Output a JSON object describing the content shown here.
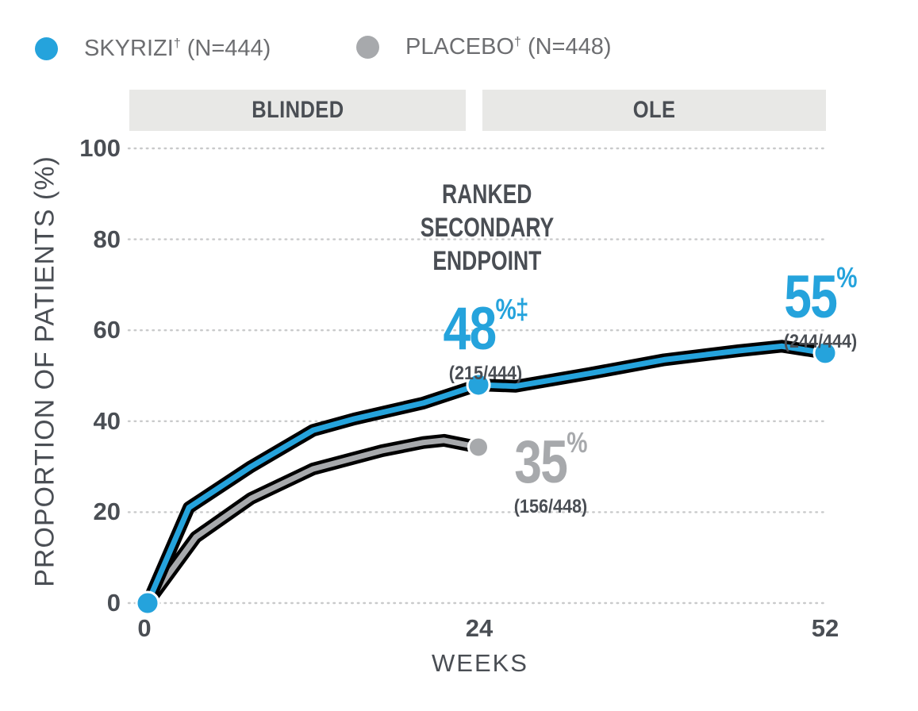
{
  "legend": {
    "items": [
      {
        "label": "SKYRIZI",
        "dagger": "†",
        "n": "(N=444)",
        "color": "#25a3dc"
      },
      {
        "label": "PLACEBO",
        "dagger": "†",
        "n": "(N=448)",
        "color": "#a7a9ac"
      }
    ]
  },
  "chart_data": {
    "type": "line",
    "xlabel": "WEEKS",
    "ylabel": "PROPORTION OF PATIENTS (%)",
    "xlim": [
      0,
      52
    ],
    "ylim": [
      0,
      100
    ],
    "x_ticks": [
      0,
      24,
      52
    ],
    "y_ticks": [
      0,
      20,
      40,
      60,
      80,
      100
    ],
    "grid": "dotted-horizontal",
    "legend_position": "top-left",
    "phases": [
      {
        "label": "BLINDED",
        "x_start": 0,
        "x_end": 24
      },
      {
        "label": "OLE",
        "x_start": 24,
        "x_end": 52
      }
    ],
    "series": [
      {
        "name": "PLACEBO",
        "color": "#a7a9ac",
        "outline": "#000000",
        "points": [
          [
            0,
            0
          ],
          [
            3.5,
            14.5
          ],
          [
            7.5,
            23
          ],
          [
            12,
            29.5
          ],
          [
            17,
            33.5
          ],
          [
            20,
            35.3
          ],
          [
            21.5,
            35.8
          ],
          [
            24,
            34.3
          ]
        ],
        "markers": [
          [
            24,
            34.3
          ]
        ],
        "marker_radius": 12.5,
        "endpoint_value_pct": 35,
        "endpoint_fraction": "(156/448)"
      },
      {
        "name": "SKYRIZI",
        "color": "#25a3dc",
        "outline": "#000000",
        "points": [
          [
            0,
            0
          ],
          [
            3,
            21
          ],
          [
            7.5,
            30
          ],
          [
            12,
            38
          ],
          [
            15,
            40.5
          ],
          [
            20,
            44
          ],
          [
            24,
            48
          ],
          [
            27,
            47.7
          ],
          [
            33,
            50.5
          ],
          [
            39,
            53.5
          ],
          [
            45,
            55.5
          ],
          [
            48.5,
            56.5
          ],
          [
            52,
            55
          ]
        ],
        "markers": [
          [
            0,
            0
          ],
          [
            24,
            48
          ],
          [
            52,
            55
          ]
        ],
        "marker_radius": 14,
        "endpoint_value_pct": 55,
        "endpoint_fraction": "(244/444)"
      }
    ],
    "annotations": [
      {
        "id": "ranked-secondary-endpoint",
        "lines": [
          "RANKED",
          "SECONDARY",
          "ENDPOINT"
        ]
      },
      {
        "id": "skyrizi-week24",
        "value": "48",
        "unit": "%",
        "dagger": "‡",
        "fraction": "(215/444)",
        "color": "#25a3dc"
      },
      {
        "id": "skyrizi-week52",
        "value": "55",
        "unit": "%",
        "dagger": "",
        "fraction": "(244/444)",
        "color": "#25a3dc"
      },
      {
        "id": "placebo-week24",
        "value": "35",
        "unit": "%",
        "dagger": "",
        "fraction": "(156/448)",
        "color": "#a7a9ac"
      }
    ],
    "colors": {
      "skyrizi_blue": "#25a3dc",
      "placebo_gray": "#a7a9ac",
      "dark_text": "#4a4e54",
      "legend_text": "#6d6e71",
      "phase_bar_bg": "#e8e8e6",
      "gridline": "#c9cacb"
    }
  }
}
